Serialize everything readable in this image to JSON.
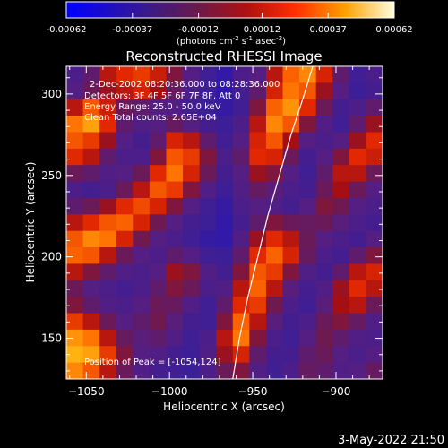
{
  "chart_data": {
    "type": "heatmap",
    "title": "Reconstructed RHESSI Image",
    "xlabel": "Heliocentric X (arcsec)",
    "ylabel": "Heliocentric Y (arcsec)",
    "xlim": [
      -1062,
      -872
    ],
    "ylim": [
      125,
      317
    ],
    "xticks": [
      -1050,
      -1000,
      -950,
      -900
    ],
    "yticks": [
      150,
      200,
      250,
      300
    ],
    "colorbar": {
      "min": -0.00062,
      "max": 0.00062,
      "ticks": [
        "-0.00062",
        "-0.00037",
        "-0.00012",
        "0.00012",
        "0.00037",
        "0.00062"
      ],
      "tick_values": [
        -0.00062,
        -0.00037,
        -0.00012,
        0.00012,
        0.00037,
        0.00062
      ],
      "label": "(photons cm",
      "label_exp1": "-2",
      "label_mid": " s",
      "label_exp2": "-1",
      "label_mid2": " asec",
      "label_exp3": "-2",
      "label_end": ")"
    },
    "annotations": [
      "2-Dec-2002 08:20:36.000 to 08:28:36.000",
      "Detectors: 3F 4F 5F 6F 7F 8F, Att 0",
      "Energy Range: 25.0 - 50.0 keV",
      "Clean    Total counts: 2.65E+04"
    ],
    "peak_label": "Position of Peak = [-1054,124]",
    "limb": [
      [
        -962,
        125
      ],
      [
        -958,
        150
      ],
      [
        -953,
        175
      ],
      [
        -947,
        200
      ],
      [
        -941,
        225
      ],
      [
        -934,
        250
      ],
      [
        -927,
        275
      ],
      [
        -919,
        300
      ],
      [
        -914,
        317
      ]
    ],
    "grid_rows": 19,
    "grid_cols": 19,
    "grid": [
      [
        0.25,
        0.35,
        0.55,
        0.62,
        0.65,
        0.58,
        0.45,
        0.3,
        0.2,
        0.15,
        0.25,
        0.3,
        0.55,
        0.72,
        0.78,
        0.6,
        0.35,
        0.2,
        0.25
      ],
      [
        0.3,
        0.4,
        0.5,
        0.55,
        0.6,
        0.52,
        0.38,
        0.25,
        0.18,
        0.14,
        0.22,
        0.35,
        0.6,
        0.75,
        0.7,
        0.5,
        0.3,
        0.18,
        0.22
      ],
      [
        0.55,
        0.7,
        0.58,
        0.4,
        0.35,
        0.3,
        0.28,
        0.22,
        0.18,
        0.16,
        0.2,
        0.45,
        0.72,
        0.8,
        0.62,
        0.4,
        0.22,
        0.25,
        0.35
      ],
      [
        0.75,
        0.82,
        0.62,
        0.35,
        0.28,
        0.3,
        0.38,
        0.3,
        0.22,
        0.18,
        0.25,
        0.55,
        0.78,
        0.7,
        0.45,
        0.28,
        0.2,
        0.35,
        0.5
      ],
      [
        0.7,
        0.65,
        0.5,
        0.3,
        0.22,
        0.35,
        0.6,
        0.55,
        0.35,
        0.2,
        0.3,
        0.6,
        0.7,
        0.52,
        0.3,
        0.25,
        0.3,
        0.5,
        0.62
      ],
      [
        0.62,
        0.55,
        0.35,
        0.25,
        0.25,
        0.45,
        0.7,
        0.65,
        0.45,
        0.25,
        0.35,
        0.62,
        0.6,
        0.4,
        0.22,
        0.3,
        0.45,
        0.62,
        0.58
      ],
      [
        0.4,
        0.35,
        0.28,
        0.3,
        0.4,
        0.62,
        0.75,
        0.6,
        0.4,
        0.22,
        0.3,
        0.5,
        0.45,
        0.3,
        0.2,
        0.35,
        0.55,
        0.55,
        0.4
      ],
      [
        0.25,
        0.22,
        0.25,
        0.4,
        0.55,
        0.7,
        0.65,
        0.45,
        0.28,
        0.18,
        0.28,
        0.38,
        0.32,
        0.25,
        0.22,
        0.4,
        0.52,
        0.4,
        0.3
      ],
      [
        0.35,
        0.4,
        0.5,
        0.62,
        0.68,
        0.6,
        0.45,
        0.3,
        0.2,
        0.16,
        0.25,
        0.3,
        0.28,
        0.22,
        0.3,
        0.45,
        0.42,
        0.3,
        0.25
      ],
      [
        0.55,
        0.62,
        0.7,
        0.72,
        0.6,
        0.42,
        0.3,
        0.22,
        0.18,
        0.15,
        0.22,
        0.35,
        0.45,
        0.4,
        0.38,
        0.4,
        0.32,
        0.25,
        0.22
      ],
      [
        0.7,
        0.78,
        0.75,
        0.6,
        0.42,
        0.3,
        0.25,
        0.2,
        0.16,
        0.15,
        0.28,
        0.5,
        0.62,
        0.55,
        0.4,
        0.3,
        0.25,
        0.22,
        0.3
      ],
      [
        0.72,
        0.7,
        0.55,
        0.4,
        0.3,
        0.25,
        0.35,
        0.3,
        0.2,
        0.18,
        0.35,
        0.62,
        0.72,
        0.6,
        0.38,
        0.25,
        0.22,
        0.35,
        0.45
      ],
      [
        0.55,
        0.45,
        0.35,
        0.28,
        0.25,
        0.3,
        0.5,
        0.45,
        0.28,
        0.22,
        0.45,
        0.7,
        0.65,
        0.45,
        0.28,
        0.22,
        0.35,
        0.55,
        0.6
      ],
      [
        0.4,
        0.3,
        0.25,
        0.22,
        0.25,
        0.35,
        0.45,
        0.4,
        0.25,
        0.28,
        0.55,
        0.72,
        0.55,
        0.32,
        0.22,
        0.28,
        0.5,
        0.62,
        0.55
      ],
      [
        0.45,
        0.35,
        0.28,
        0.25,
        0.3,
        0.4,
        0.38,
        0.28,
        0.2,
        0.35,
        0.62,
        0.65,
        0.42,
        0.25,
        0.2,
        0.32,
        0.52,
        0.55,
        0.4
      ],
      [
        0.65,
        0.55,
        0.4,
        0.3,
        0.35,
        0.42,
        0.32,
        0.22,
        0.2,
        0.45,
        0.72,
        0.55,
        0.32,
        0.22,
        0.25,
        0.4,
        0.45,
        0.38,
        0.28
      ],
      [
        0.8,
        0.75,
        0.55,
        0.38,
        0.32,
        0.35,
        0.28,
        0.2,
        0.25,
        0.55,
        0.75,
        0.45,
        0.25,
        0.2,
        0.3,
        0.42,
        0.35,
        0.28,
        0.25
      ],
      [
        0.85,
        0.82,
        0.65,
        0.45,
        0.3,
        0.28,
        0.22,
        0.18,
        0.28,
        0.5,
        0.6,
        0.35,
        0.22,
        0.22,
        0.35,
        0.4,
        0.3,
        0.25,
        0.3
      ],
      [
        0.78,
        0.7,
        0.55,
        0.4,
        0.28,
        0.22,
        0.2,
        0.18,
        0.25,
        0.4,
        0.45,
        0.28,
        0.2,
        0.25,
        0.38,
        0.35,
        0.28,
        0.3,
        0.38
      ]
    ],
    "grid_note_none": ""
  },
  "footer": {
    "date": "3-May-2022 21:50"
  },
  "colors": {
    "background": "#000000",
    "foreground": "#ffffff",
    "limb": "#ffffff"
  }
}
